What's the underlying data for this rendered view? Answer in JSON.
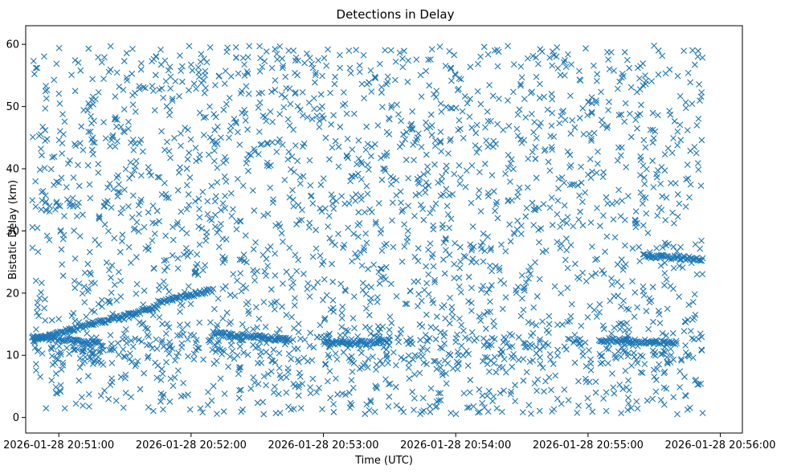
{
  "chart_data": {
    "type": "scatter",
    "title": "Detections in Delay",
    "xlabel": "Time (UTC)",
    "ylabel": "Bistatic Delay (km)",
    "marker": "x",
    "color": "#1f77b4",
    "grid": false,
    "legend": "none",
    "xlim": [
      "2026-01-28 20:50:45",
      "2026-01-28 20:56:10"
    ],
    "ylim": [
      -2.5,
      63
    ],
    "x_ticks": [
      "2026-01-28 20:51:00",
      "2026-01-28 20:52:00",
      "2026-01-28 20:53:00",
      "2026-01-28 20:54:00",
      "2026-01-28 20:55:00",
      "2026-01-28 20:56:00"
    ],
    "y_ticks": [
      0,
      10,
      20,
      30,
      40,
      50,
      60
    ],
    "data_range": {
      "x": [
        "2026-01-28 20:50:48",
        "2026-01-28 20:55:52"
      ],
      "y": [
        0.5,
        59.8
      ]
    },
    "tracks": [
      {
        "x": [
          "2026-01-28 20:50:48",
          "2026-01-28 20:51:45"
        ],
        "y": [
          12.5,
          17.8
        ]
      },
      {
        "x": [
          "2026-01-28 20:51:45",
          "2026-01-28 20:52:10"
        ],
        "y": [
          18.5,
          20.5
        ]
      },
      {
        "x": [
          "2026-01-28 20:50:48",
          "2026-01-28 20:51:20"
        ],
        "y": [
          13.0,
          11.8
        ]
      },
      {
        "x": [
          "2026-01-28 20:52:10",
          "2026-01-28 20:52:45"
        ],
        "y": [
          13.5,
          12.5
        ]
      },
      {
        "x": [
          "2026-01-28 20:53:00",
          "2026-01-28 20:53:30"
        ],
        "y": [
          12.0,
          12.2
        ]
      },
      {
        "x": [
          "2026-01-28 20:55:05",
          "2026-01-28 20:55:40"
        ],
        "y": [
          12.5,
          12.0
        ]
      },
      {
        "x": [
          "2026-01-28 20:55:25",
          "2026-01-28 20:55:52"
        ],
        "y": [
          26.0,
          25.5
        ]
      }
    ]
  }
}
